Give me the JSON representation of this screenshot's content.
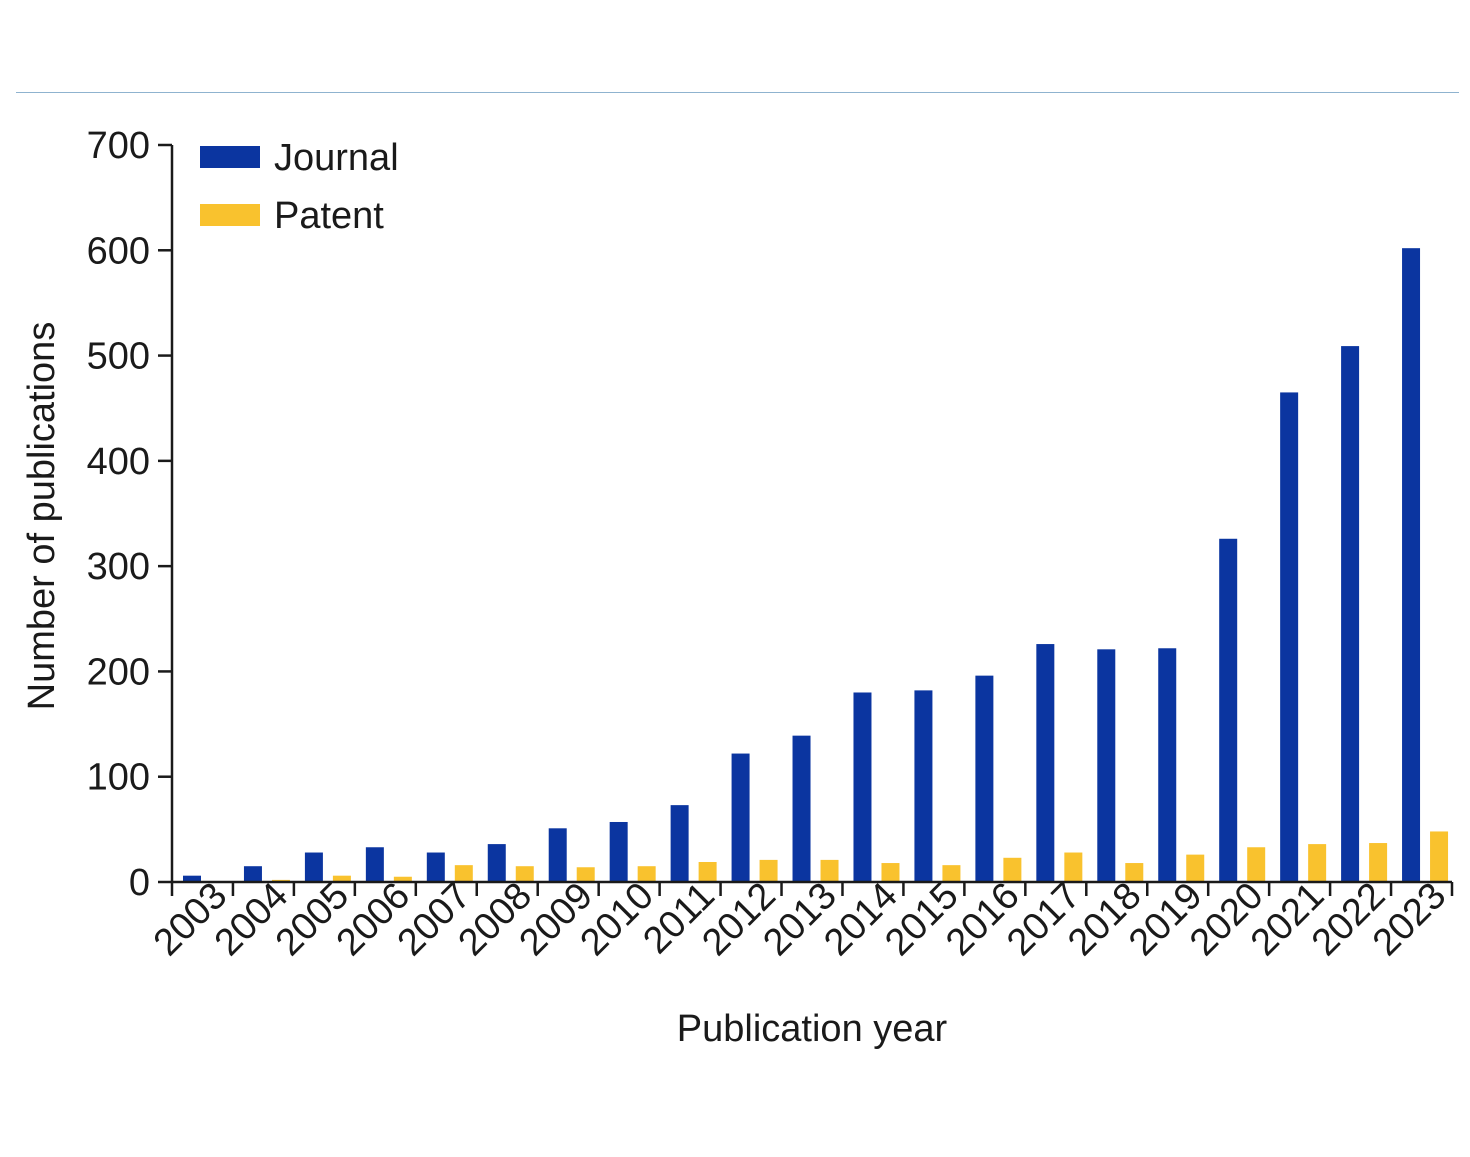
{
  "chart_data": {
    "type": "bar",
    "title": "",
    "xlabel": "Publication year",
    "ylabel": "Number of publications",
    "ylim": [
      0,
      700
    ],
    "yticks": [
      0,
      100,
      200,
      300,
      400,
      500,
      600,
      700
    ],
    "grid": false,
    "legend_position": "top-left",
    "categories": [
      "2003",
      "2004",
      "2005",
      "2006",
      "2007",
      "2008",
      "2009",
      "2010",
      "2011",
      "2012",
      "2013",
      "2014",
      "2015",
      "2016",
      "2017",
      "2018",
      "2019",
      "2020",
      "2021",
      "2022",
      "2023"
    ],
    "series": [
      {
        "name": "Journal",
        "color": "#0b35a0",
        "values": [
          6,
          15,
          28,
          33,
          28,
          36,
          51,
          57,
          73,
          122,
          139,
          180,
          182,
          196,
          226,
          221,
          222,
          326,
          465,
          509,
          602
        ]
      },
      {
        "name": "Patent",
        "color": "#f9c22e",
        "values": [
          0,
          2,
          6,
          5,
          16,
          15,
          14,
          15,
          19,
          21,
          21,
          18,
          16,
          23,
          28,
          18,
          26,
          33,
          36,
          37,
          48
        ]
      }
    ]
  }
}
